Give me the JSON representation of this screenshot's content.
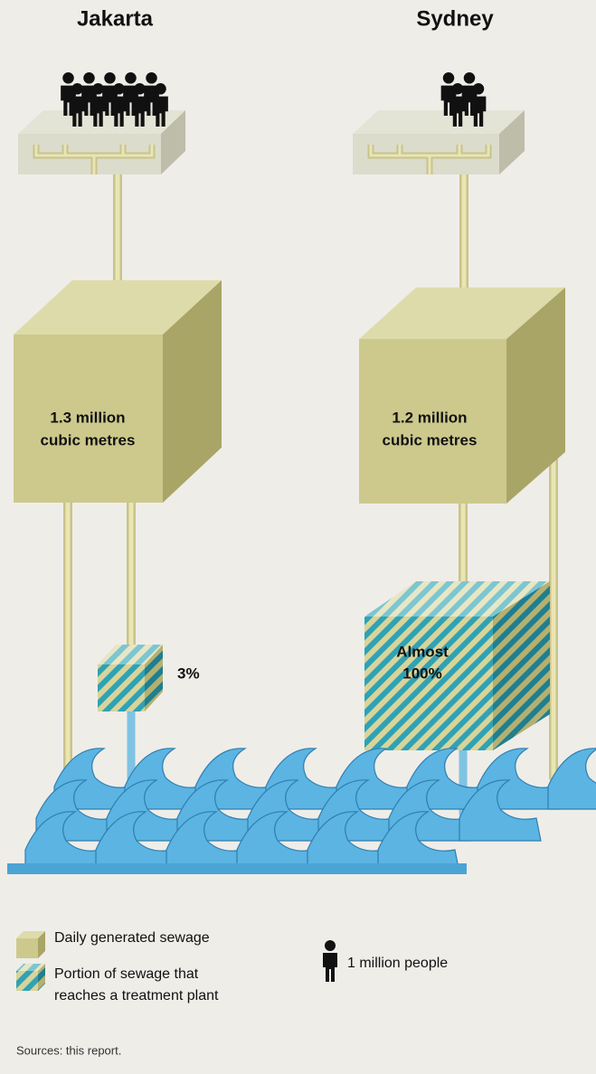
{
  "cities": [
    {
      "name": "Jakarta",
      "people_icons": 10,
      "volume": [
        "1.3 million",
        "cubic metres"
      ],
      "treated": [
        "3%"
      ]
    },
    {
      "name": "Sydney",
      "people_icons": 4,
      "volume": [
        "1.2 million",
        "cubic metres"
      ],
      "treated": [
        "Almost",
        "100%"
      ]
    }
  ],
  "legend": {
    "sewage": [
      "Daily generated sewage"
    ],
    "treated": [
      "Portion of sewage that",
      "reaches a treatment plant"
    ],
    "people": "1 million people"
  },
  "source": "Sources: this report."
}
